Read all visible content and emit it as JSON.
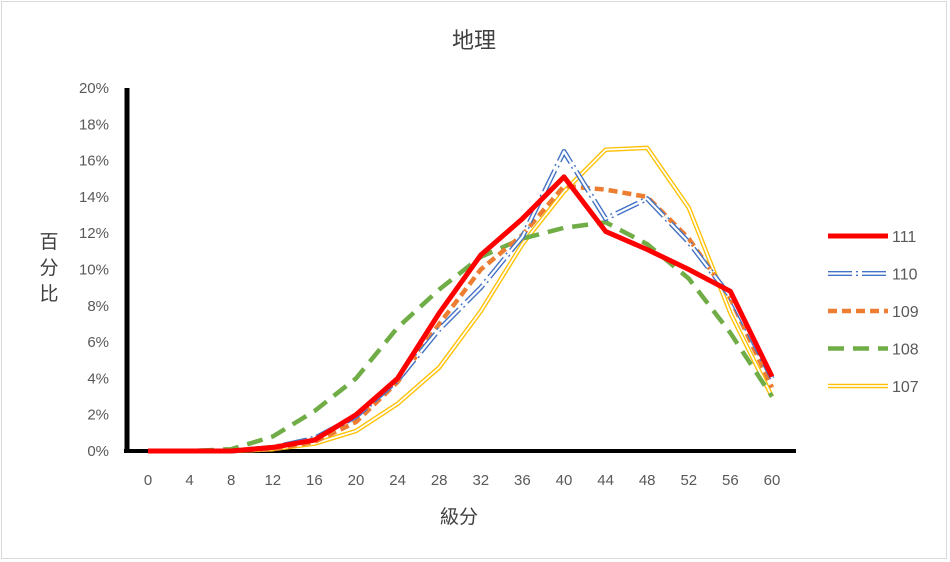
{
  "chart_data": {
    "type": "line",
    "title": "地理",
    "xlabel": "級分",
    "ylabel": "百分比",
    "x": [
      0,
      4,
      8,
      12,
      16,
      20,
      24,
      28,
      32,
      36,
      40,
      44,
      48,
      52,
      56,
      60
    ],
    "ylim": [
      0,
      20
    ],
    "yticks": [
      "0%",
      "2%",
      "4%",
      "6%",
      "8%",
      "10%",
      "12%",
      "14%",
      "16%",
      "18%",
      "20%"
    ],
    "grid": false,
    "legend_position": "right",
    "series": [
      {
        "name": "111",
        "color": "#ff0000",
        "style": "solid-thick",
        "values": [
          0.0,
          0.0,
          0.0,
          0.2,
          0.6,
          2.0,
          4.0,
          7.6,
          10.8,
          12.8,
          15.1,
          12.1,
          11.1,
          10.0,
          8.8,
          4.1
        ]
      },
      {
        "name": "110",
        "color": "#4472c4",
        "style": "double-dot",
        "values": [
          0.0,
          0.0,
          0.0,
          0.2,
          0.7,
          1.9,
          3.9,
          6.7,
          9.0,
          11.8,
          16.5,
          12.8,
          13.9,
          11.5,
          8.5,
          4.0
        ]
      },
      {
        "name": "109",
        "color": "#ed7d31",
        "style": "dashed",
        "values": [
          0.0,
          0.0,
          0.0,
          0.1,
          0.5,
          1.6,
          3.8,
          7.0,
          10.0,
          11.9,
          14.6,
          14.4,
          14.0,
          11.7,
          8.4,
          3.5
        ]
      },
      {
        "name": "108",
        "color": "#70ad47",
        "style": "long-dash",
        "values": [
          0.0,
          0.0,
          0.1,
          0.8,
          2.2,
          4.0,
          6.8,
          8.9,
          10.7,
          11.7,
          12.3,
          12.6,
          11.4,
          9.5,
          6.5,
          3.0
        ]
      },
      {
        "name": "107",
        "color": "#ffc000",
        "style": "double",
        "values": [
          0.0,
          0.0,
          0.0,
          0.1,
          0.4,
          1.1,
          2.6,
          4.6,
          7.7,
          11.4,
          14.3,
          16.6,
          16.7,
          13.4,
          7.6,
          3.0
        ]
      }
    ]
  }
}
